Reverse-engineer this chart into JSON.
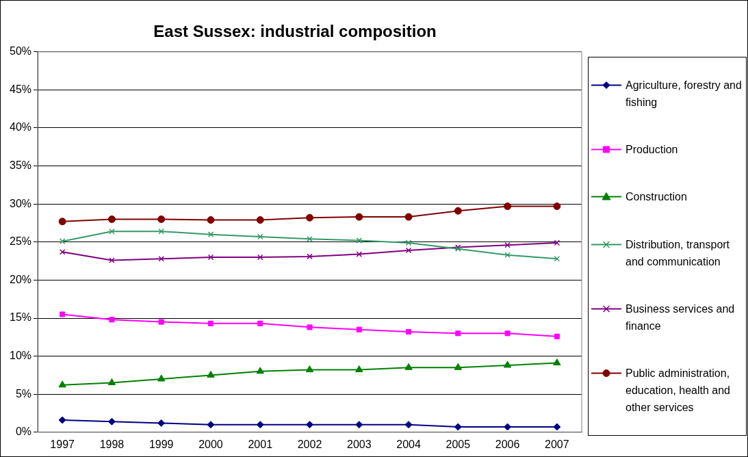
{
  "chart_data": {
    "type": "line",
    "title": "East Sussex: industrial composition",
    "categories": [
      "1997",
      "1998",
      "1999",
      "2000",
      "2001",
      "2002",
      "2003",
      "2004",
      "2005",
      "2006",
      "2007"
    ],
    "series": [
      {
        "name": "Agriculture, forestry and fishing",
        "color": "#000080",
        "marker": "diamond",
        "values": [
          1.6,
          1.4,
          1.2,
          1.0,
          1.0,
          1.0,
          1.0,
          1.0,
          0.7,
          0.7,
          0.7
        ]
      },
      {
        "name": "Production",
        "color": "#ff00ff",
        "marker": "square",
        "values": [
          15.5,
          14.8,
          14.5,
          14.3,
          14.3,
          13.8,
          13.5,
          13.2,
          13.0,
          13.0,
          12.6
        ]
      },
      {
        "name": "Construction",
        "color": "#008000",
        "marker": "triangle",
        "values": [
          6.2,
          6.5,
          7.0,
          7.5,
          8.0,
          8.2,
          8.2,
          8.5,
          8.5,
          8.8,
          9.1
        ]
      },
      {
        "name": "Distribution, transport and communication",
        "color": "#339966",
        "marker": "cross",
        "values": [
          25.1,
          26.4,
          26.4,
          26.0,
          25.7,
          25.4,
          25.2,
          24.9,
          24.1,
          23.3,
          22.8
        ]
      },
      {
        "name": "Business services and finance",
        "color": "#800080",
        "marker": "cross",
        "values": [
          23.7,
          22.6,
          22.8,
          23.0,
          23.0,
          23.1,
          23.4,
          23.9,
          24.3,
          24.6,
          24.9
        ]
      },
      {
        "name": "Public administration, education, health and other services",
        "color": "#800000",
        "marker": "circle",
        "values": [
          27.7,
          28.0,
          28.0,
          27.9,
          27.9,
          28.2,
          28.3,
          28.3,
          29.1,
          29.7,
          29.7
        ]
      }
    ],
    "ylim": [
      0,
      50
    ],
    "yticks": [
      {
        "value": 0,
        "label": "0%"
      },
      {
        "value": 5,
        "label": "5%"
      },
      {
        "value": 10,
        "label": "10%"
      },
      {
        "value": 15,
        "label": "15%"
      },
      {
        "value": 20,
        "label": "20%"
      },
      {
        "value": 25,
        "label": "25%"
      },
      {
        "value": 30,
        "label": "30%"
      },
      {
        "value": 35,
        "label": "35%"
      },
      {
        "value": 40,
        "label": "40%"
      },
      {
        "value": 45,
        "label": "45%"
      },
      {
        "value": 50,
        "label": "50%"
      }
    ],
    "grid": "y",
    "legend": "right",
    "line_style": "solid"
  }
}
